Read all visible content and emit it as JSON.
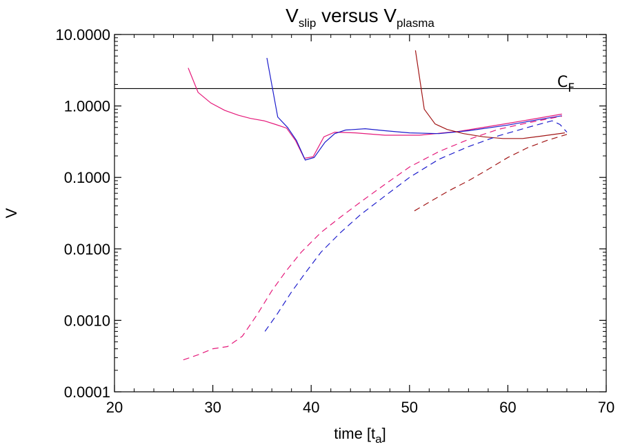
{
  "chart_data": {
    "type": "line",
    "title": {
      "main": "V",
      "sub1": "slip",
      "mid": " versus V",
      "sub2": "plasma"
    },
    "xlabel": {
      "main": "time [t",
      "sub": "a",
      "end": "]"
    },
    "ylabel": "V",
    "y_scale": "log",
    "xlim": [
      20,
      70
    ],
    "ylim": [
      0.0001,
      10
    ],
    "x_ticks": [
      20,
      30,
      40,
      50,
      60,
      70
    ],
    "y_ticks": [
      0.0001,
      0.001,
      0.01,
      0.1,
      1,
      10
    ],
    "x_tick_labels": [
      "20",
      "30",
      "40",
      "50",
      "60",
      "70"
    ],
    "y_tick_labels": [
      "0.0001",
      "0.0010",
      "0.0100",
      "0.1000",
      "1.0000",
      "10.0000"
    ],
    "reference_line": {
      "y": 1.75,
      "label": {
        "main": "C",
        "sub": "F"
      },
      "color": "#000000"
    },
    "series": [
      {
        "color": "#e5197a",
        "style": "solid",
        "x": [
          27.5,
          28.5,
          29.8,
          31.2,
          32.6,
          33.8,
          35.2,
          36.4,
          37.5,
          38.4,
          39.3,
          40.2,
          41.3,
          42.4,
          44.5,
          47.5,
          51,
          55,
          60,
          65.5
        ],
        "y": [
          3.4,
          1.55,
          1.1,
          0.87,
          0.74,
          0.67,
          0.62,
          0.55,
          0.49,
          0.33,
          0.185,
          0.195,
          0.37,
          0.43,
          0.42,
          0.39,
          0.39,
          0.44,
          0.57,
          0.77
        ]
      },
      {
        "color": "#1c1ccc",
        "style": "solid",
        "x": [
          35.5,
          36.6,
          37.6,
          38.5,
          39.4,
          40.3,
          41.4,
          42.4,
          43.5,
          45.5,
          47.5,
          50,
          53,
          56,
          60,
          63,
          65.5
        ],
        "y": [
          4.7,
          0.7,
          0.5,
          0.33,
          0.175,
          0.19,
          0.31,
          0.41,
          0.46,
          0.48,
          0.45,
          0.42,
          0.41,
          0.45,
          0.54,
          0.64,
          0.73
        ]
      },
      {
        "color": "#a11414",
        "style": "solid",
        "x": [
          50.6,
          51.5,
          52.6,
          53.8,
          55.5,
          57.5,
          59.5,
          61.5,
          63.5,
          65.8
        ],
        "y": [
          6.0,
          0.9,
          0.56,
          0.47,
          0.41,
          0.37,
          0.35,
          0.35,
          0.38,
          0.42
        ]
      },
      {
        "color": "#e5197a",
        "style": "dashed",
        "x": [
          27,
          28.5,
          30,
          31.5,
          33,
          34.5,
          36,
          37.5,
          39,
          41,
          43,
          45,
          47.5,
          50,
          53,
          56,
          59,
          62,
          65.5
        ],
        "y": [
          0.00028,
          0.00033,
          0.0004,
          0.00043,
          0.0006,
          0.0012,
          0.0026,
          0.005,
          0.009,
          0.017,
          0.028,
          0.045,
          0.08,
          0.14,
          0.23,
          0.34,
          0.47,
          0.58,
          0.72
        ]
      },
      {
        "color": "#1c1ccc",
        "style": "dashed",
        "x": [
          35.3,
          36.5,
          38,
          39.5,
          41,
          43,
          45,
          47.5,
          50,
          53,
          56,
          59,
          62,
          64.5,
          65.3,
          66
        ],
        "y": [
          0.0007,
          0.0012,
          0.0025,
          0.0048,
          0.009,
          0.017,
          0.03,
          0.055,
          0.1,
          0.18,
          0.27,
          0.38,
          0.5,
          0.62,
          0.55,
          0.43
        ]
      },
      {
        "color": "#a11414",
        "style": "dashed",
        "x": [
          50.5,
          52,
          54,
          56,
          58,
          60,
          62,
          64,
          66
        ],
        "y": [
          0.034,
          0.045,
          0.065,
          0.09,
          0.13,
          0.19,
          0.26,
          0.33,
          0.4
        ]
      }
    ]
  }
}
